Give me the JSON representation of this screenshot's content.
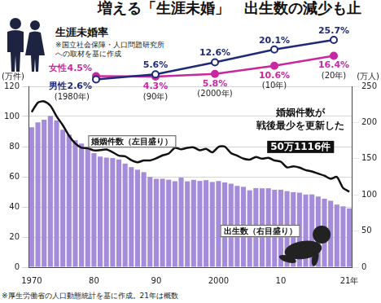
{
  "chart_data": [
    {
      "type": "bar",
      "title": "増える「生涯未婚」　出生数の減少も止",
      "categories": [
        "1970",
        null,
        null,
        null,
        null,
        null,
        null,
        null,
        null,
        null,
        "80",
        null,
        null,
        null,
        null,
        null,
        null,
        null,
        null,
        null,
        "90",
        null,
        null,
        null,
        null,
        null,
        null,
        null,
        null,
        null,
        "2000",
        null,
        null,
        null,
        null,
        null,
        null,
        null,
        null,
        null,
        "10",
        null,
        null,
        null,
        null,
        null,
        null,
        null,
        null,
        null,
        null,
        "21年"
      ],
      "series": [
        {
          "name": "婚姻件数（左目盛り）",
          "type": "line",
          "color": "#111111",
          "line_style": "solid",
          "values": [
            102.9,
            109.2,
            110.0,
            107.2,
            100.1,
            94.2,
            87.2,
            82.1,
            79.3,
            78.9,
            77.5,
            77.7,
            78.1,
            76.3,
            74.0,
            73.6,
            71.0,
            69.6,
            70.8,
            70.8,
            72.2,
            74.2,
            75.4,
            79.2,
            78.2,
            79.2,
            79.5,
            77.6,
            78.5,
            76.2,
            79.8,
            80.0,
            75.7,
            74.0,
            72.0,
            71.4,
            73.1,
            72.0,
            72.6,
            70.8,
            70.0,
            66.2,
            66.9,
            66.1,
            64.4,
            63.5,
            62.1,
            60.7,
            58.6,
            59.9,
            52.6,
            50.1
          ]
        },
        {
          "name": "出生数（右目盛り）",
          "type": "bar",
          "color": "#a58cdb",
          "axis": "y2",
          "values": [
            193.4,
            200.1,
            203.9,
            209.2,
            203.0,
            190.1,
            183.3,
            175.5,
            170.9,
            164.3,
            157.7,
            152.9,
            151.5,
            150.9,
            149.0,
            143.2,
            138.3,
            134.7,
            131.4,
            124.7,
            122.2,
            122.3,
            120.9,
            118.8,
            123.8,
            118.7,
            120.7,
            119.2,
            120.3,
            117.8,
            119.1,
            117.1,
            115.4,
            112.4,
            111.1,
            106.3,
            109.3,
            109.0,
            109.1,
            107.0,
            107.1,
            105.1,
            103.7,
            103.0,
            100.4,
            100.6,
            97.7,
            94.6,
            91.8,
            86.5,
            84.1,
            81.2
          ]
        }
      ],
      "ylabel": "(万件)",
      "ylim": [
        0,
        120
      ],
      "yticks": [
        0,
        20,
        40,
        60,
        80,
        100,
        120
      ],
      "y2label": "(万人)",
      "y2lim": [
        0,
        250
      ],
      "y2ticks": [
        0,
        50,
        100,
        150,
        200,
        250
      ],
      "grid": true,
      "annotation": {
        "text": [
          "婚姻件数が",
          "戦後最少を更新した"
        ],
        "highlight": "50万1116件"
      },
      "source": "※厚生労働省の人口動態統計を基に作成。21年は概数"
    },
    {
      "type": "line",
      "title": "生涯未婚率",
      "note": [
        "※国立社会保障・人口問題研究所",
        "への取材を基に作成"
      ],
      "categories": [
        "(1980年)",
        "(90年)",
        "(2000年)",
        "(10年)",
        "(20年)"
      ],
      "series": [
        {
          "name": "男性",
          "color": "#1e2a78",
          "marker": "circle",
          "line_style": "solid",
          "values": [
            2.6,
            5.6,
            12.6,
            20.1,
            25.7
          ],
          "value_labels": [
            "2.6%",
            "5.6%",
            "12.6%",
            "20.1%",
            "25.7%"
          ]
        },
        {
          "name": "女性",
          "color": "#c8289e",
          "marker": "circle",
          "line_style": "solid",
          "values": [
            4.5,
            4.3,
            5.8,
            10.6,
            16.4
          ],
          "value_labels": [
            "4.5%",
            "4.3%",
            "5.8%",
            "10.6%",
            "16.4%"
          ]
        }
      ],
      "data_labels": true,
      "tick_labels": false,
      "grid": false
    }
  ]
}
